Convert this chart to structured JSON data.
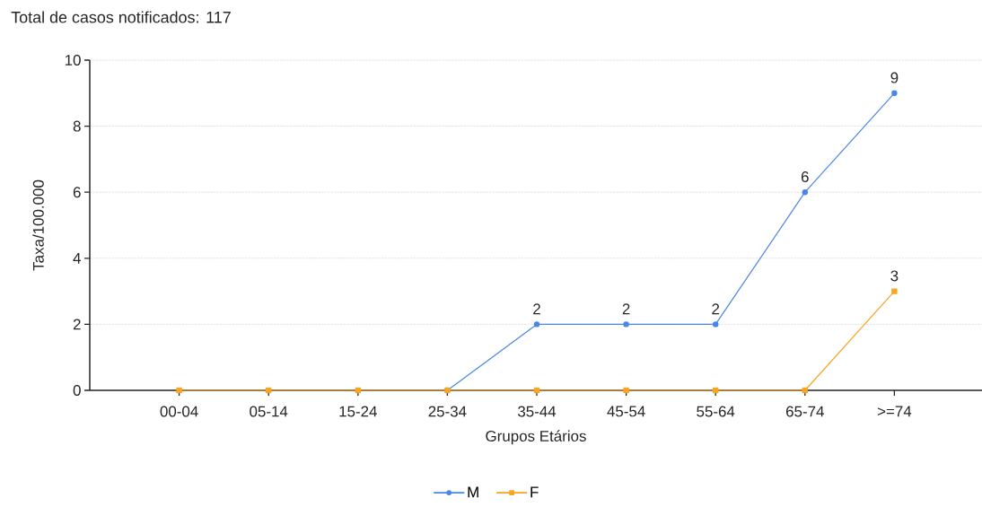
{
  "chart_data": {
    "type": "line",
    "title": "Total de casos notificados: 117",
    "xlabel": "Grupos Etários",
    "ylabel": "Taxa/100.000",
    "categories": [
      "00-04",
      "05-14",
      "15-24",
      "25-34",
      "35-44",
      "45-54",
      "55-64",
      "65-74",
      ">=74"
    ],
    "series": [
      {
        "name": "M",
        "color": "#4a86e8",
        "marker": "circle",
        "values": [
          null,
          null,
          null,
          0,
          2,
          2,
          2,
          6,
          9
        ],
        "value_labels": [
          null,
          null,
          null,
          null,
          "2",
          "2",
          "2",
          "6",
          "9"
        ]
      },
      {
        "name": "F",
        "color": "#f5a623",
        "marker": "square",
        "values": [
          0,
          0,
          0,
          0,
          0,
          0,
          0,
          0,
          3
        ],
        "value_labels": [
          null,
          null,
          null,
          null,
          null,
          null,
          null,
          null,
          "3"
        ]
      }
    ],
    "ylim": [
      0,
      10
    ],
    "yticks": [
      0,
      2,
      4,
      6,
      8,
      10
    ],
    "grid": "y",
    "legend": "bottom",
    "line_style": "solid"
  }
}
